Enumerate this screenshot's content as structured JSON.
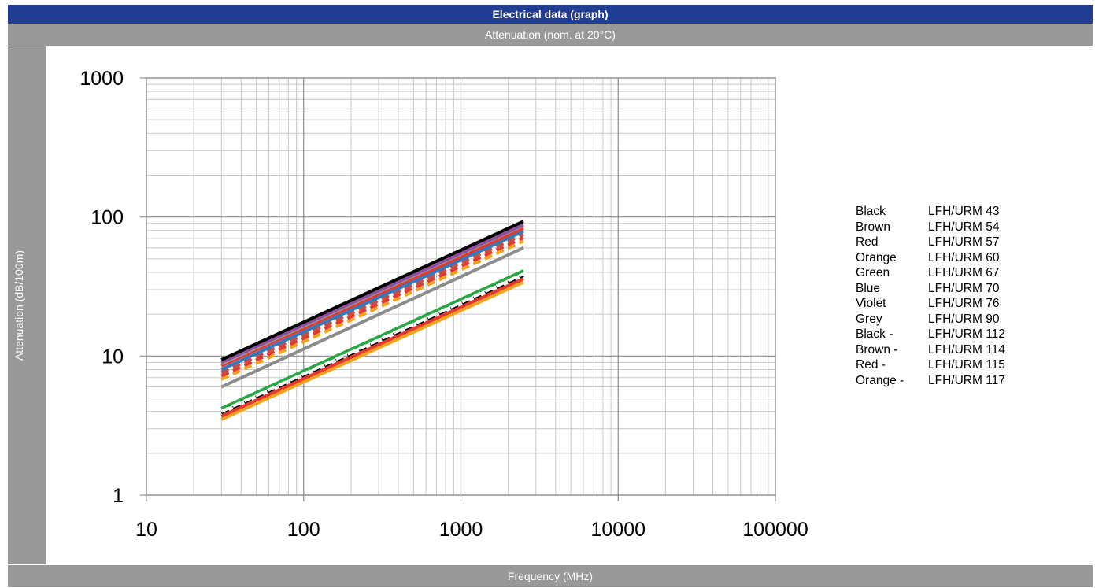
{
  "header": {
    "title": "Electrical data (graph)",
    "subtitle": "Attenuation (nom. at 20°C)"
  },
  "chart_data": {
    "type": "line",
    "title": "Attenuation (nom. at 20°C)",
    "xlabel": "Frequency (MHz)",
    "ylabel": "Attenuation (dB/100m)",
    "xscale": "log",
    "yscale": "log",
    "xlim": [
      10,
      100000
    ],
    "ylim": [
      1,
      1000
    ],
    "xticks": [
      "10",
      "100",
      "1000",
      "10000",
      "100000"
    ],
    "yticks": [
      "1",
      "10",
      "100",
      "1000"
    ],
    "grid": true,
    "legend_position": "right",
    "series": [
      {
        "name": "LFH/URM 43",
        "color_name": "Black",
        "color": "#000000",
        "dashed": false,
        "x": [
          30,
          2500
        ],
        "y": [
          9.4,
          93
        ]
      },
      {
        "name": "LFH/URM 54",
        "color_name": "Brown",
        "color": "#9a9a9a",
        "dashed": false,
        "x": [
          30,
          2500
        ],
        "y": [
          8.8,
          87
        ]
      },
      {
        "name": "LFH/URM 57",
        "color_name": "Red",
        "color": "#e4392f",
        "dashed": false,
        "x": [
          30,
          2500
        ],
        "y": [
          8.5,
          83
        ]
      },
      {
        "name": "LFH/URM 60",
        "color_name": "Orange",
        "color": "#f4a21c",
        "dashed": false,
        "x": [
          30,
          2500
        ],
        "y": [
          3.5,
          34
        ]
      },
      {
        "name": "LFH/URM 67",
        "color_name": "Green",
        "color": "#28a745",
        "dashed": false,
        "x": [
          30,
          2500
        ],
        "y": [
          4.2,
          41
        ]
      },
      {
        "name": "LFH/URM 70",
        "color_name": "Blue",
        "color": "#2f7bbf",
        "dashed": false,
        "x": [
          30,
          2500
        ],
        "y": [
          8.0,
          79
        ]
      },
      {
        "name": "LFH/URM 76",
        "color_name": "Violet",
        "color": "#8e4f9e",
        "dashed": false,
        "x": [
          30,
          2500
        ],
        "y": [
          9.0,
          88
        ]
      },
      {
        "name": "LFH/URM 90",
        "color_name": "Grey",
        "color": "#8c8c8c",
        "dashed": false,
        "x": [
          30,
          2500
        ],
        "y": [
          6.0,
          60
        ]
      },
      {
        "name": "LFH/URM 112",
        "color_name": "Black -",
        "color": "#000000",
        "dashed": true,
        "x": [
          30,
          2500
        ],
        "y": [
          3.9,
          38
        ]
      },
      {
        "name": "LFH/URM 114",
        "color_name": "Brown -",
        "color": "#c0504d",
        "dashed": true,
        "x": [
          30,
          2500
        ],
        "y": [
          7.6,
          75
        ]
      },
      {
        "name": "LFH/URM 115",
        "color_name": "Red -",
        "color": "#e4392f",
        "dashed": true,
        "x": [
          30,
          2500
        ],
        "y": [
          7.2,
          71
        ]
      },
      {
        "name": "LFH/URM 117",
        "color_name": "Orange -",
        "color": "#f4a21c",
        "dashed": true,
        "x": [
          30,
          2500
        ],
        "y": [
          6.8,
          67
        ]
      }
    ]
  },
  "extra_lines": [
    {
      "color": "#e4392f",
      "dashed": false,
      "x": [
        30,
        2500
      ],
      "y": [
        3.7,
        36
      ]
    },
    {
      "color": "#ffffff",
      "dashed": true,
      "x": [
        30,
        2500
      ],
      "y": [
        4.0,
        39
      ]
    }
  ]
}
